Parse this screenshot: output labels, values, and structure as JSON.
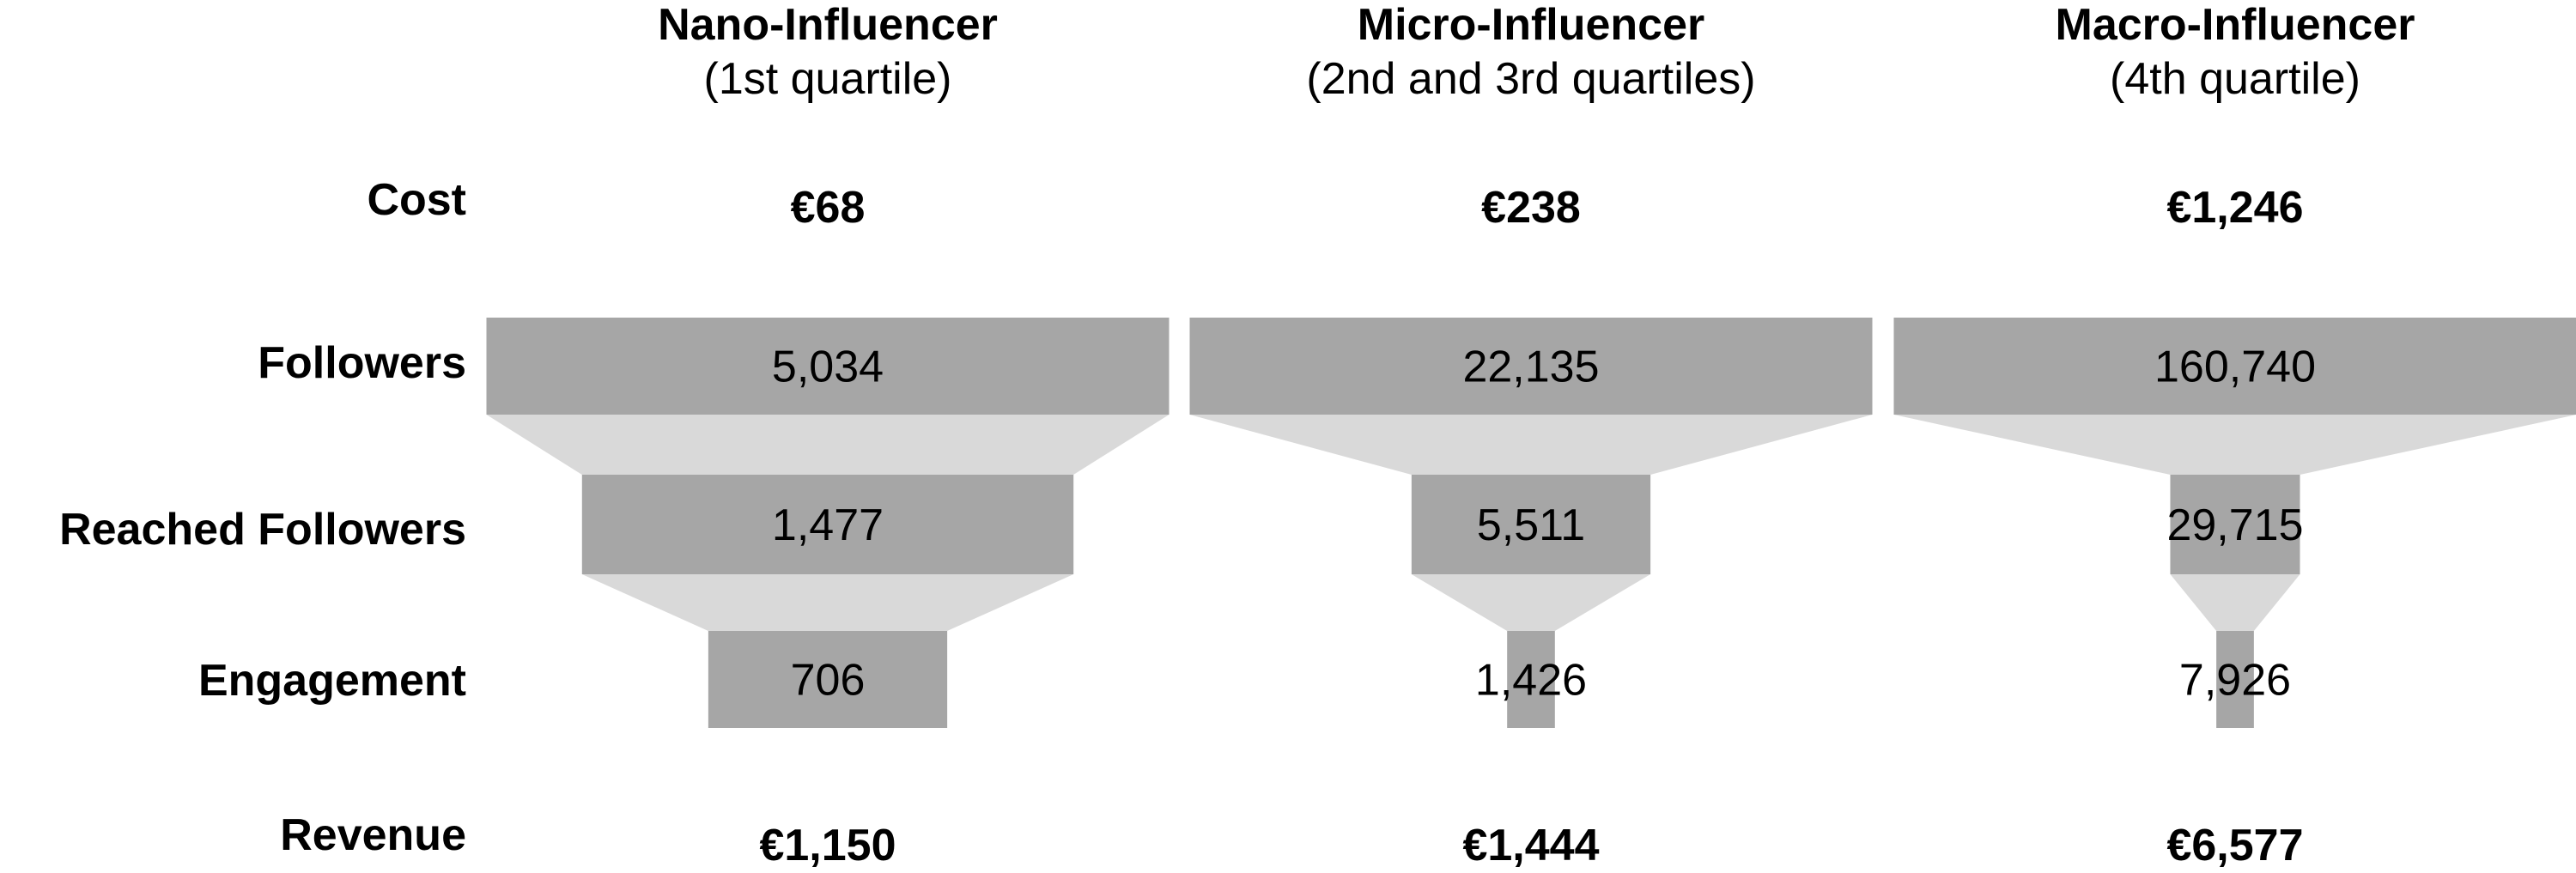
{
  "row_labels": {
    "cost": "Cost",
    "followers": "Followers",
    "reached": "Reached Followers",
    "engagement": "Engagement",
    "revenue": "Revenue"
  },
  "columns": [
    {
      "name": "Nano-Influencer",
      "subtitle": "(1st quartile)"
    },
    {
      "name": "Micro-Influencer",
      "subtitle": "(2nd and 3rd quartiles)"
    },
    {
      "name": "Macro-Influencer",
      "subtitle": "(4th quartile)"
    }
  ],
  "colors": {
    "bar": "#a6a6a6",
    "connector": "#d9d9d9",
    "text": "#000000"
  },
  "chart_data": {
    "type": "funnel",
    "categories": [
      "Nano-Influencer",
      "Micro-Influencer",
      "Macro-Influencer"
    ],
    "stages": [
      "Followers",
      "Reached Followers",
      "Engagement"
    ],
    "funnels": [
      {
        "cost": "€68",
        "revenue": "€1,150",
        "values": [
          5034,
          1477,
          706
        ],
        "labels": [
          "5,034",
          "1,477",
          "706"
        ]
      },
      {
        "cost": "€238",
        "revenue": "€1,444",
        "values": [
          22135,
          5511,
          1426
        ],
        "labels": [
          "22,135",
          "5,511",
          "1,426"
        ]
      },
      {
        "cost": "€1,246",
        "revenue": "€6,577",
        "values": [
          160740,
          29715,
          7926
        ],
        "labels": [
          "160,740",
          "29,715",
          "7,926"
        ]
      }
    ],
    "width_fractions": [
      [
        1.0,
        0.72,
        0.35
      ],
      [
        1.0,
        0.35,
        0.07
      ],
      [
        1.0,
        0.19,
        0.055
      ]
    ]
  }
}
